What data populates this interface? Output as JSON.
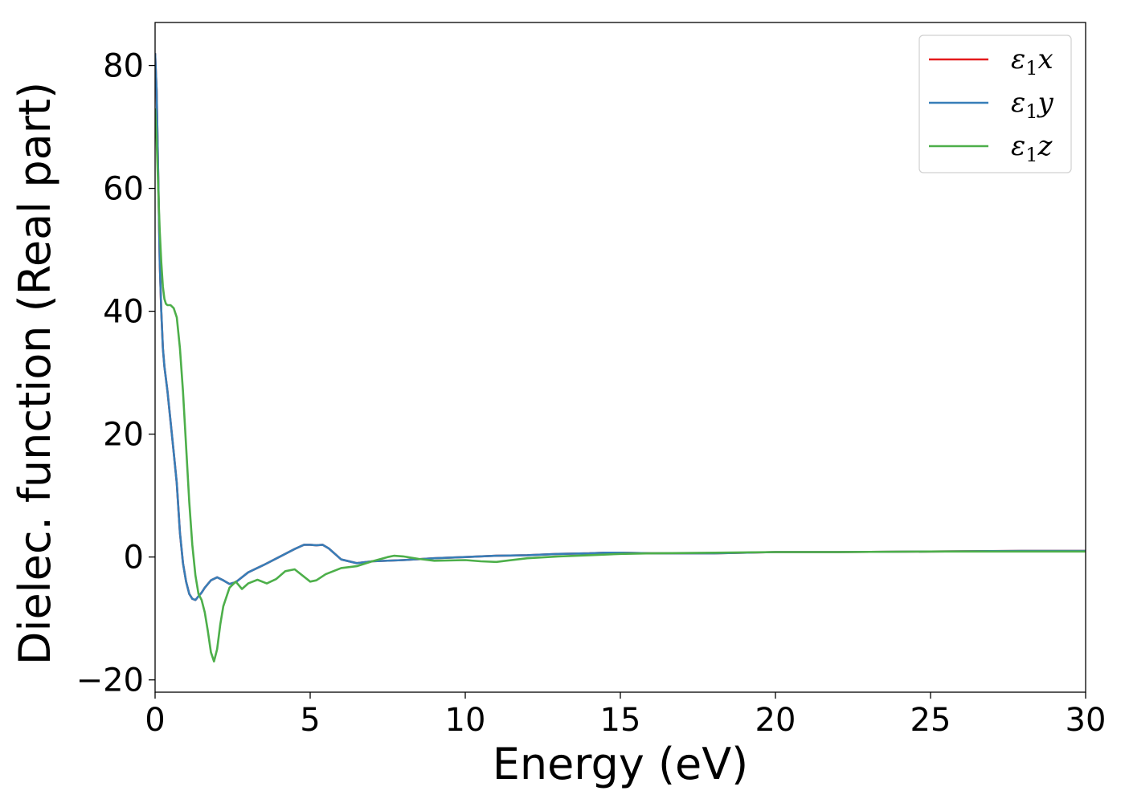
{
  "chart_data": {
    "type": "line",
    "title": "",
    "xlabel": "Energy (eV)",
    "ylabel": "Dielec. function (Real part)",
    "xlim": [
      0,
      30
    ],
    "ylim": [
      -22,
      87
    ],
    "xticks": [
      0,
      5,
      10,
      15,
      20,
      25,
      30
    ],
    "xtick_labels": [
      "0",
      "5",
      "10",
      "15",
      "20",
      "25",
      "30"
    ],
    "yticks": [
      -20,
      0,
      20,
      40,
      60,
      80
    ],
    "ytick_labels": [
      "−20",
      "0",
      "20",
      "40",
      "60",
      "80"
    ],
    "grid": false,
    "legend_position": "top-right",
    "legend": [
      {
        "base": "ε",
        "sub": "1",
        "suffix": "x",
        "color": "#e41a1c"
      },
      {
        "base": "ε",
        "sub": "1",
        "suffix": "y",
        "color": "#377eb8"
      },
      {
        "base": "ε",
        "sub": "1",
        "suffix": "z",
        "color": "#4daf4a"
      }
    ],
    "series": [
      {
        "name": "ε1x",
        "color": "#e41a1c",
        "x": [
          0,
          0.05,
          0.1,
          0.15,
          0.2,
          0.25,
          0.3,
          0.4,
          0.5,
          0.6,
          0.7,
          0.8,
          0.9,
          1.0,
          1.1,
          1.2,
          1.3,
          1.4,
          1.5,
          1.6,
          1.8,
          2.0,
          2.2,
          2.4,
          2.6,
          3.0,
          3.5,
          4.0,
          4.5,
          4.8,
          5.0,
          5.2,
          5.4,
          5.6,
          6.0,
          6.5,
          7.0,
          8.0,
          9.0,
          10.0,
          11.0,
          12.0,
          13.0,
          14.0,
          14.5,
          15.0,
          16.0,
          18.0,
          20.0,
          22.0,
          25.0,
          28.0,
          30.0
        ],
        "y": [
          82,
          76,
          62,
          48,
          40,
          34,
          31,
          27,
          22,
          17,
          12,
          4,
          -1,
          -4,
          -6,
          -6.8,
          -7,
          -6.4,
          -5.8,
          -5,
          -3.8,
          -3.3,
          -3.8,
          -4.4,
          -4.1,
          -2.5,
          -1.3,
          0,
          1.3,
          2,
          2,
          1.9,
          2,
          1.4,
          -0.4,
          -1,
          -0.7,
          -0.5,
          -0.2,
          0,
          0.2,
          0.3,
          0.5,
          0.6,
          0.7,
          0.7,
          0.6,
          0.6,
          0.8,
          0.8,
          0.9,
          1,
          1
        ]
      },
      {
        "name": "ε1y",
        "color": "#377eb8",
        "x": [
          0,
          0.05,
          0.1,
          0.15,
          0.2,
          0.25,
          0.3,
          0.4,
          0.5,
          0.6,
          0.7,
          0.8,
          0.9,
          1.0,
          1.1,
          1.2,
          1.3,
          1.4,
          1.5,
          1.6,
          1.8,
          2.0,
          2.2,
          2.4,
          2.6,
          3.0,
          3.5,
          4.0,
          4.5,
          4.8,
          5.0,
          5.2,
          5.4,
          5.6,
          6.0,
          6.5,
          7.0,
          8.0,
          9.0,
          10.0,
          11.0,
          12.0,
          13.0,
          14.0,
          14.5,
          15.0,
          16.0,
          18.0,
          20.0,
          22.0,
          25.0,
          28.0,
          30.0
        ],
        "y": [
          82,
          76,
          62,
          48,
          40,
          34,
          31,
          27,
          22,
          17,
          12,
          4,
          -1,
          -4,
          -6,
          -6.8,
          -7,
          -6.4,
          -5.8,
          -5,
          -3.8,
          -3.3,
          -3.8,
          -4.4,
          -4.1,
          -2.5,
          -1.3,
          0,
          1.3,
          2,
          2,
          1.9,
          2,
          1.4,
          -0.4,
          -1,
          -0.7,
          -0.5,
          -0.2,
          0,
          0.2,
          0.3,
          0.5,
          0.6,
          0.7,
          0.7,
          0.6,
          0.6,
          0.8,
          0.8,
          0.9,
          1,
          1
        ]
      },
      {
        "name": "ε1z",
        "color": "#4daf4a",
        "x": [
          0,
          0.05,
          0.1,
          0.15,
          0.2,
          0.25,
          0.3,
          0.35,
          0.4,
          0.5,
          0.6,
          0.7,
          0.8,
          0.9,
          1.0,
          1.1,
          1.2,
          1.3,
          1.4,
          1.5,
          1.6,
          1.7,
          1.8,
          1.9,
          2.0,
          2.1,
          2.2,
          2.4,
          2.6,
          2.8,
          3.0,
          3.3,
          3.6,
          3.9,
          4.2,
          4.5,
          4.8,
          5.0,
          5.2,
          5.5,
          6.0,
          6.5,
          7.0,
          7.5,
          7.7,
          8.0,
          8.5,
          9.0,
          10.0,
          10.5,
          11.0,
          12.0,
          13.0,
          14.0,
          15.0,
          16.0,
          18.0,
          20.0,
          22.0,
          25.0,
          28.0,
          30.0
        ],
        "y": [
          73,
          68,
          60,
          53,
          48,
          44,
          42,
          41.2,
          41,
          41,
          40.5,
          39,
          34,
          27,
          18,
          9,
          2,
          -3,
          -6,
          -7,
          -9,
          -12,
          -15.5,
          -17,
          -15,
          -11,
          -8,
          -5,
          -4,
          -5.2,
          -4.3,
          -3.7,
          -4.3,
          -3.6,
          -2.3,
          -2,
          -3.2,
          -4,
          -3.8,
          -2.8,
          -1.8,
          -1.5,
          -0.7,
          0,
          0.2,
          0.1,
          -0.3,
          -0.6,
          -0.5,
          -0.7,
          -0.8,
          -0.2,
          0.1,
          0.3,
          0.5,
          0.6,
          0.7,
          0.8,
          0.8,
          0.9,
          0.9,
          0.9
        ]
      }
    ]
  }
}
